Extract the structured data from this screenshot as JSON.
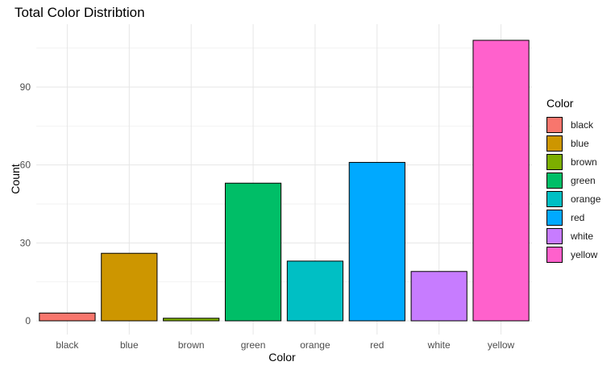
{
  "chart_data": {
    "type": "bar",
    "title": "Total Color Distribtion",
    "xlabel": "Color",
    "ylabel": "Count",
    "categories": [
      "black",
      "blue",
      "brown",
      "green",
      "orange",
      "red",
      "white",
      "yellow"
    ],
    "values": [
      3,
      26,
      1,
      53,
      23,
      61,
      19,
      108
    ],
    "colors": [
      "#F8766D",
      "#CD9600",
      "#7CAE00",
      "#00BE67",
      "#00BFC4",
      "#00A9FF",
      "#C77CFF",
      "#FF61CC"
    ],
    "ylim": [
      0,
      113.5
    ],
    "yticks": [
      0,
      30,
      60,
      90
    ],
    "grid": true,
    "legend": {
      "title": "Color",
      "position": "right",
      "items": [
        "black",
        "blue",
        "brown",
        "green",
        "orange",
        "red",
        "white",
        "yellow"
      ]
    }
  }
}
